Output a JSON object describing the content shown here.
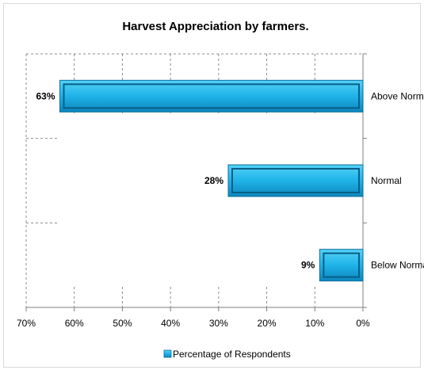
{
  "chart_data": {
    "type": "bar",
    "orientation": "horizontal",
    "x_axis_reversed": true,
    "title": "Harvest Appreciation by  farmers.",
    "categories": [
      "Above Normal",
      "Normal",
      "Below Normal"
    ],
    "series": [
      {
        "name": "Percentage of Respondents",
        "values": [
          63,
          28,
          9
        ],
        "color": "#1fb3e8"
      }
    ],
    "data_labels": [
      "63%",
      "28%",
      "9%"
    ],
    "xlim": [
      0,
      70
    ],
    "x_ticks": [
      "70%",
      "60%",
      "50%",
      "40%",
      "30%",
      "20%",
      "10%",
      "0%"
    ],
    "grid": true,
    "legend": "bottom",
    "category_axis_position": "right"
  }
}
